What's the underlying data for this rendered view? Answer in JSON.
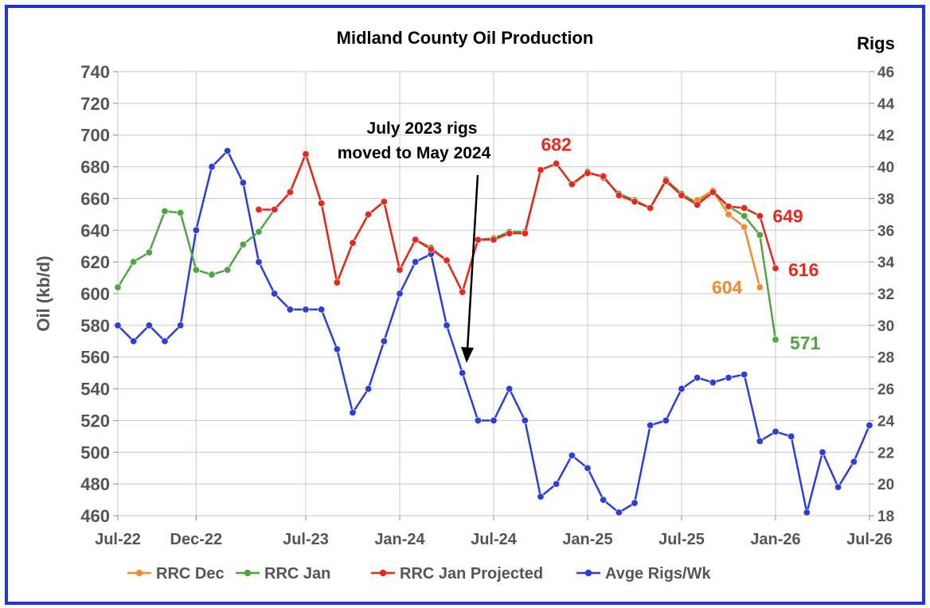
{
  "chart_data": {
    "type": "line",
    "title": "Midland County Oil Production",
    "ylabel": "Oil (kb/d)",
    "y2label": "Rigs",
    "ylim": [
      460,
      740
    ],
    "y2lim": [
      18,
      46
    ],
    "yticks": [
      740,
      720,
      700,
      680,
      660,
      640,
      620,
      600,
      580,
      560,
      540,
      520,
      500,
      480,
      460
    ],
    "y2ticks": [
      46,
      44,
      42,
      40,
      38,
      36,
      34,
      32,
      30,
      28,
      26,
      24,
      22,
      20,
      18
    ],
    "xticks": [
      "Jul-22",
      "Dec-22",
      "Jul-23",
      "Jan-24",
      "Jul-24",
      "Jan-25",
      "Jul-25",
      "Jan-26",
      "Jul-26"
    ],
    "xtick_months": [
      0,
      5,
      12,
      18,
      24,
      30,
      36,
      42,
      48
    ],
    "x_units": "months since Jul-22",
    "series": [
      {
        "name": "RRC Dec",
        "color": "#f28a2e",
        "axis": "left",
        "x": [
          37,
          38,
          39,
          40,
          41
        ],
        "values": [
          659,
          665,
          650,
          642,
          604
        ]
      },
      {
        "name": "RRC Jan",
        "color": "#4da63f",
        "axis": "left",
        "x": [
          0,
          1,
          2,
          3,
          4,
          5,
          6,
          7,
          8,
          9,
          10,
          11,
          12,
          13,
          14,
          15,
          16,
          17,
          18,
          19,
          20,
          21,
          22,
          23,
          24,
          25,
          26,
          27,
          28,
          29,
          30,
          31,
          32,
          33,
          34,
          35,
          36,
          37,
          38,
          39,
          40,
          41,
          42
        ],
        "values": [
          604,
          620,
          626,
          652,
          651,
          615,
          612,
          615,
          631,
          639,
          653,
          664,
          688,
          657,
          607,
          632,
          650,
          658,
          615,
          634,
          629,
          621,
          601,
          634,
          635,
          639,
          639,
          678,
          682,
          669,
          677,
          673,
          663,
          659,
          654,
          672,
          663,
          657,
          665,
          655,
          649,
          637,
          571
        ]
      },
      {
        "name": "RRC Jan Projected",
        "color": "#e8271d",
        "axis": "left",
        "x": [
          9,
          10,
          11,
          12,
          13,
          14,
          15,
          16,
          17,
          18,
          19,
          20,
          21,
          22,
          23,
          24,
          25,
          26,
          27,
          28,
          29,
          30,
          31,
          32,
          33,
          34,
          35,
          36,
          37,
          38,
          39,
          40,
          41,
          42
        ],
        "values": [
          653,
          653,
          664,
          688,
          657,
          607,
          632,
          650,
          658,
          615,
          634,
          628,
          621,
          601,
          634,
          634,
          638,
          638,
          678,
          682,
          669,
          676,
          674,
          662,
          658,
          654,
          671,
          662,
          656,
          664,
          655,
          654,
          649,
          616
        ]
      },
      {
        "name": "Avge Rigs/Wk",
        "color": "#2b3fd8",
        "axis": "right",
        "x": [
          0,
          1,
          2,
          3,
          4,
          5,
          6,
          7,
          8,
          9,
          10,
          11,
          12,
          13,
          14,
          15,
          16,
          17,
          18,
          19,
          20,
          21,
          22,
          23,
          24,
          25,
          26,
          27,
          28,
          29,
          30,
          31,
          32,
          33,
          34,
          35,
          36,
          37,
          38,
          39,
          40,
          41,
          42,
          43,
          44,
          45,
          46,
          47,
          48
        ],
        "values": [
          30,
          29,
          30,
          29,
          30,
          36,
          40,
          41,
          39,
          34,
          32,
          31,
          31,
          31,
          28.5,
          24.5,
          26,
          29,
          32,
          34,
          34.5,
          30,
          27,
          24,
          24,
          26,
          24,
          19.2,
          20,
          21.8,
          21,
          19,
          18.2,
          18.8,
          23.7,
          24,
          26,
          26.7,
          26.4,
          26.7,
          26.9,
          22.7,
          23.3,
          23,
          18.2,
          22,
          19.8,
          21.4,
          23.7
        ]
      }
    ],
    "data_labels": [
      {
        "text": "682",
        "series": "RRC Jan Projected",
        "color": "#e8271d"
      },
      {
        "text": "649",
        "series": "RRC Jan Projected",
        "color": "#e8271d"
      },
      {
        "text": "616",
        "series": "RRC Jan Projected",
        "color": "#e8271d"
      },
      {
        "text": "604",
        "series": "RRC Dec",
        "color": "#f28a2e"
      },
      {
        "text": "571",
        "series": "RRC Jan",
        "color": "#4da63f"
      }
    ],
    "annotation": {
      "lines": [
        "July 2023 rigs",
        "moved to May 2024"
      ],
      "points_to": "May-24"
    },
    "legend": "bottom"
  }
}
